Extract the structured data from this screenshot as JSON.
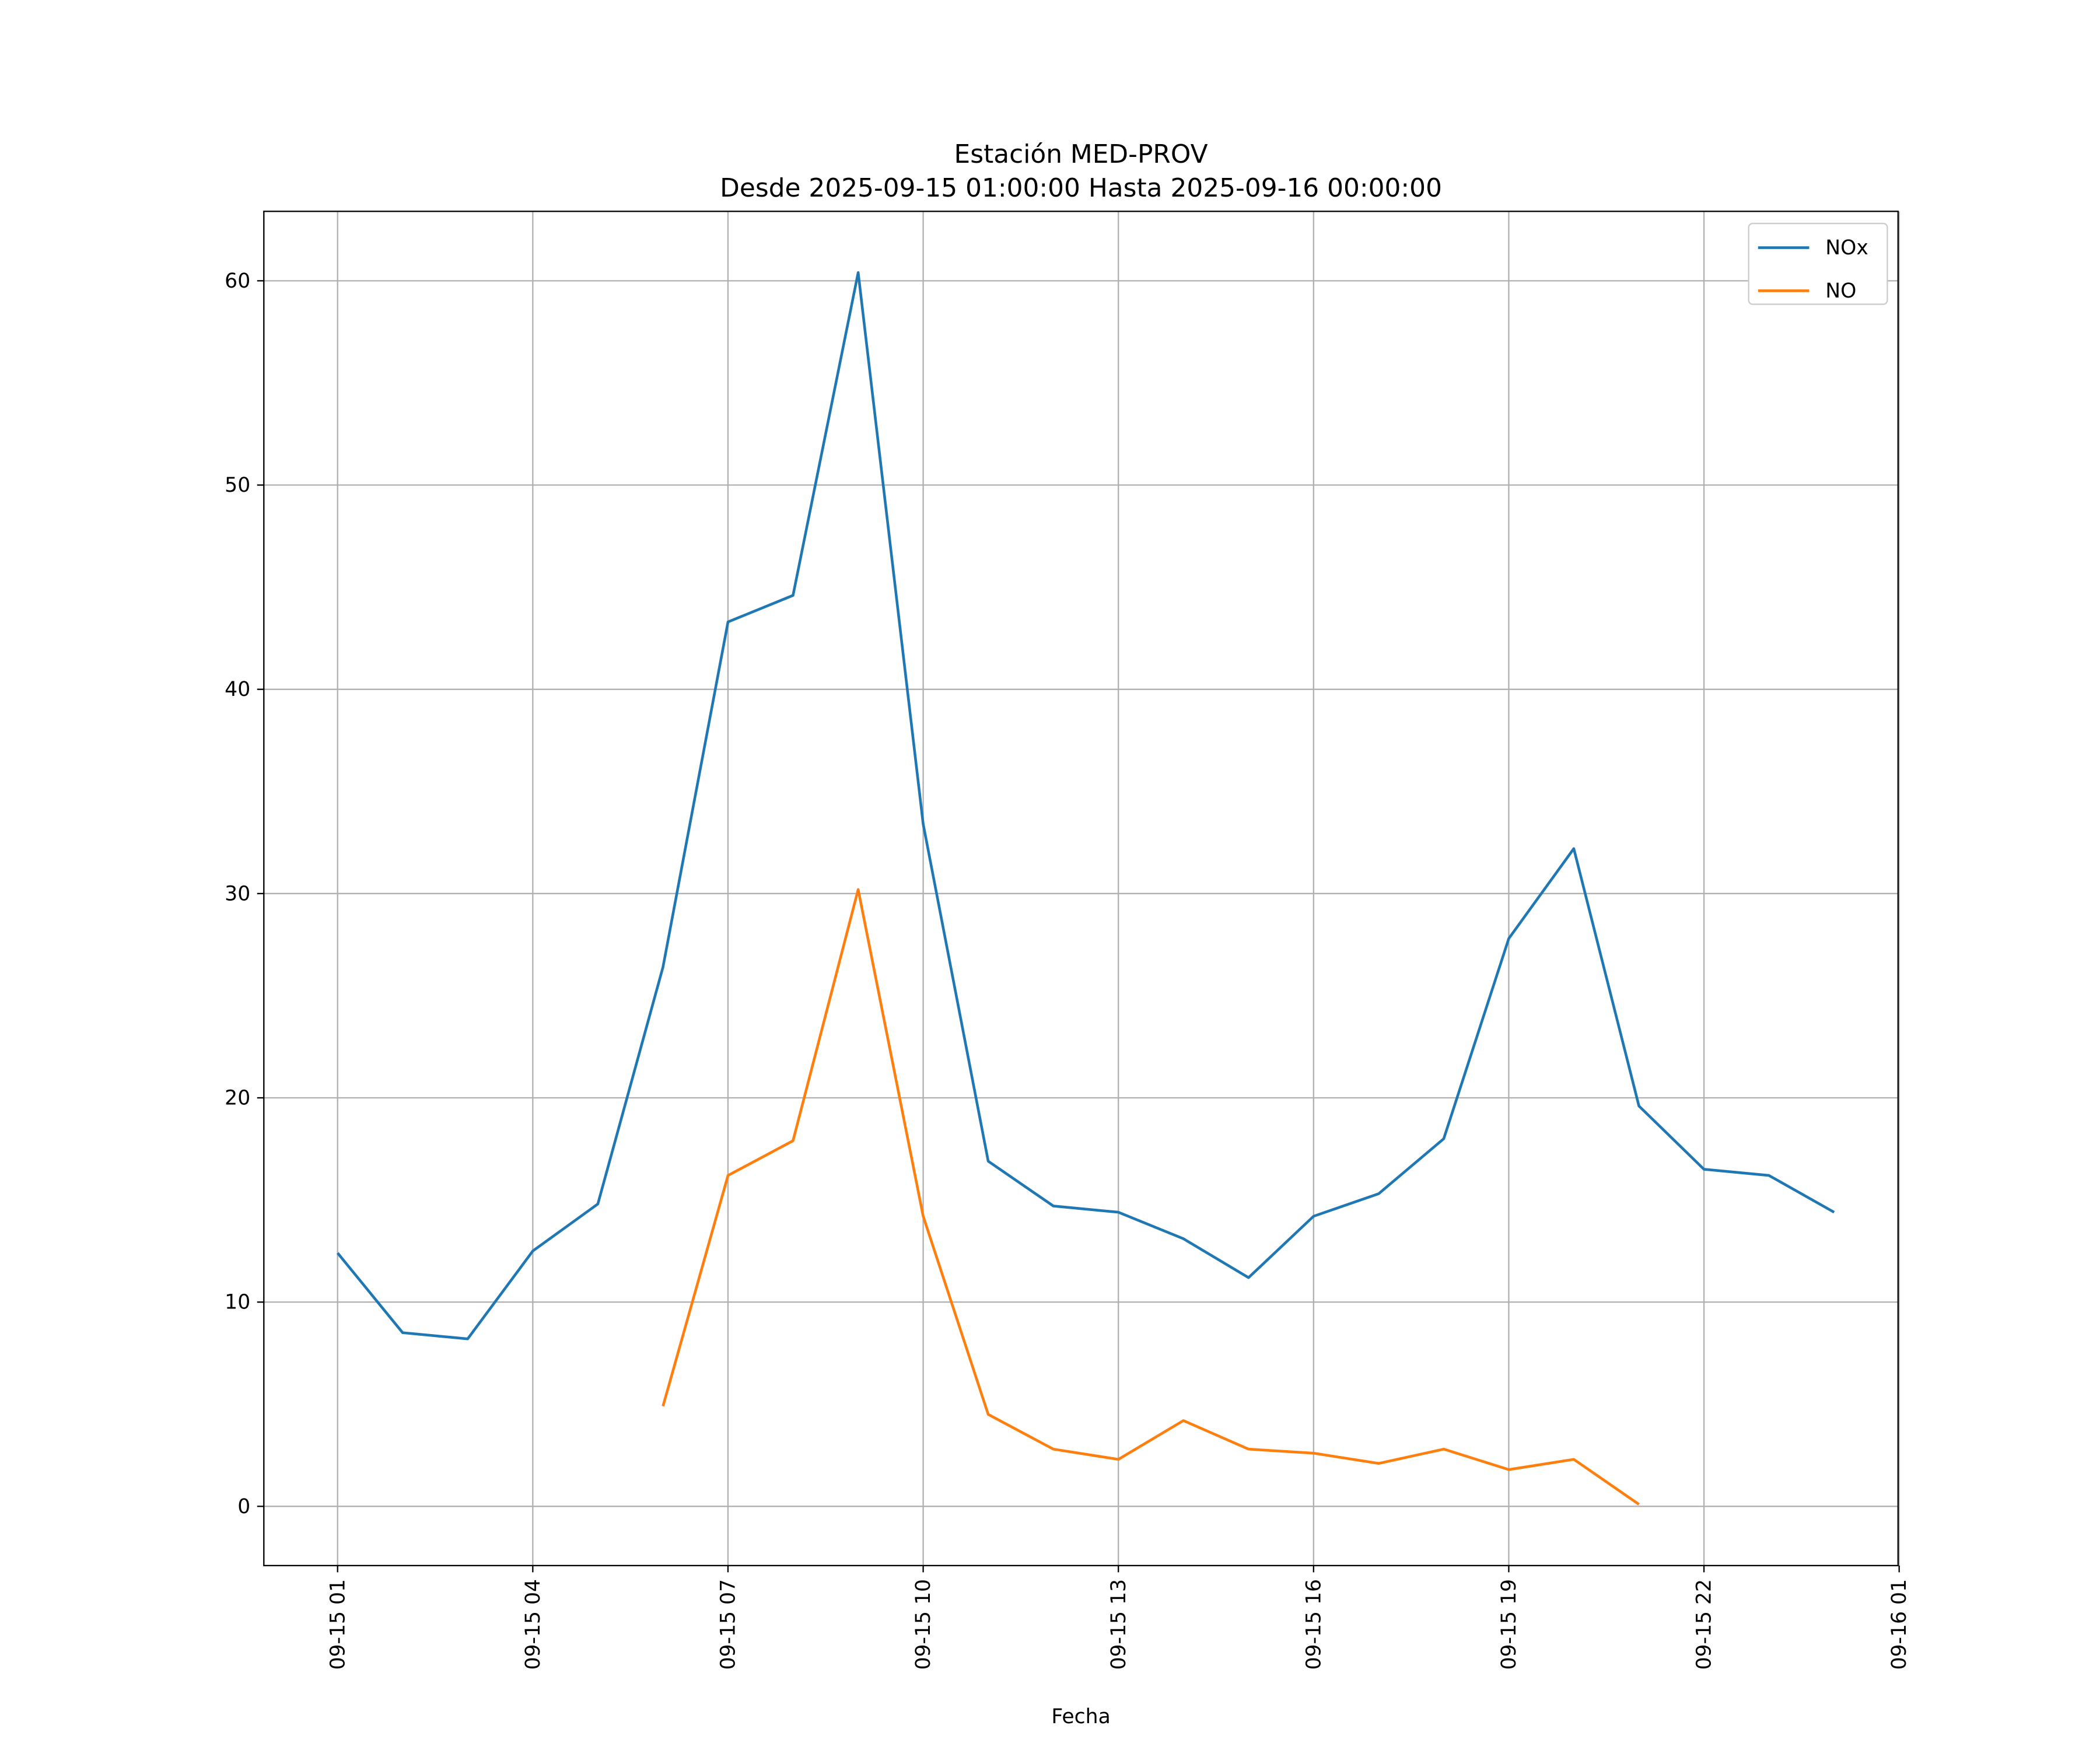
{
  "chart_data": {
    "type": "line",
    "title": "Estación MED-PROV",
    "subtitle": "Desde 2025-09-15 01:00:00 Hasta 2025-09-16 00:00:00",
    "xlabel": "Fecha",
    "ylabel": "",
    "xlim": [
      "2025-09-14 23:52",
      "2025-09-16 00:59"
    ],
    "ylim": [
      -2.9,
      63.4
    ],
    "grid": true,
    "legend": "top-right",
    "x_ticks": [
      {
        "t": "2025-09-15 01:00",
        "label": "09-15 01"
      },
      {
        "t": "2025-09-15 04:00",
        "label": "09-15 04"
      },
      {
        "t": "2025-09-15 07:00",
        "label": "09-15 07"
      },
      {
        "t": "2025-09-15 10:00",
        "label": "09-15 10"
      },
      {
        "t": "2025-09-15 13:00",
        "label": "09-15 13"
      },
      {
        "t": "2025-09-15 16:00",
        "label": "09-15 16"
      },
      {
        "t": "2025-09-15 19:00",
        "label": "09-15 19"
      },
      {
        "t": "2025-09-15 22:00",
        "label": "09-15 22"
      },
      {
        "t": "2025-09-16 01:00",
        "label": "09-16 01"
      }
    ],
    "y_ticks": [
      0,
      10,
      20,
      30,
      40,
      50,
      60
    ],
    "x": [
      "2025-09-15 01:00",
      "2025-09-15 02:00",
      "2025-09-15 03:00",
      "2025-09-15 04:00",
      "2025-09-15 05:00",
      "2025-09-15 06:00",
      "2025-09-15 07:00",
      "2025-09-15 08:00",
      "2025-09-15 09:00",
      "2025-09-15 10:00",
      "2025-09-15 11:00",
      "2025-09-15 12:00",
      "2025-09-15 13:00",
      "2025-09-15 14:00",
      "2025-09-15 15:00",
      "2025-09-15 16:00",
      "2025-09-15 17:00",
      "2025-09-15 18:00",
      "2025-09-15 19:00",
      "2025-09-15 20:00",
      "2025-09-15 21:00",
      "2025-09-15 22:00",
      "2025-09-15 23:00",
      "2025-09-16 00:00"
    ],
    "series": [
      {
        "name": "NOx",
        "color": "#1f77b4",
        "values": [
          12.4,
          8.5,
          8.2,
          12.5,
          14.8,
          26.4,
          43.3,
          44.6,
          60.4,
          33.4,
          16.9,
          14.7,
          14.4,
          13.1,
          11.2,
          14.2,
          15.3,
          18.0,
          27.8,
          32.2,
          19.6,
          16.5,
          16.2,
          14.4
        ]
      },
      {
        "name": "NO",
        "color": "#ff7f0e",
        "values": [
          null,
          null,
          null,
          null,
          null,
          4.9,
          16.2,
          17.9,
          30.2,
          14.2,
          4.5,
          2.8,
          2.3,
          4.2,
          2.8,
          2.6,
          2.1,
          2.8,
          1.8,
          2.3,
          0.1,
          null,
          null,
          null
        ]
      }
    ]
  }
}
